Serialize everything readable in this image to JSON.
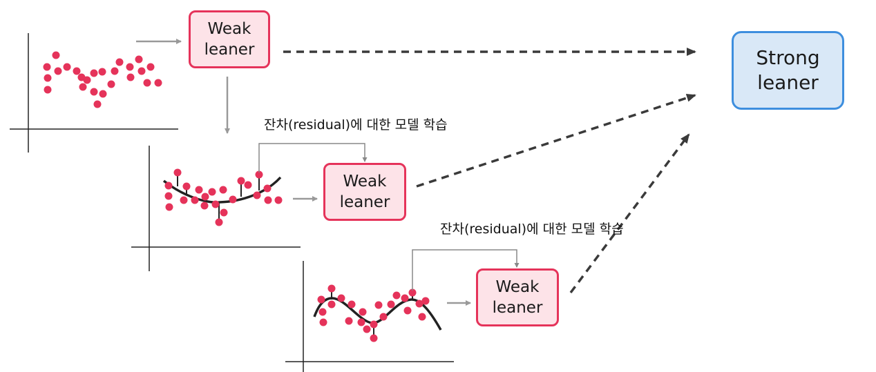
{
  "weak_learner": {
    "line1": "Weak",
    "line2": "leaner"
  },
  "strong_learner": {
    "line1": "Strong",
    "line2": "leaner"
  },
  "residual_label": "잔차(residual)에 대한 모델 학습",
  "colors": {
    "point": "#e5335a",
    "weak_border": "#e5335a",
    "weak_fill": "#fde3e8",
    "strong_border": "#3d8ede",
    "strong_fill": "#d9e8f7",
    "arrow_gray": "#999999",
    "dashed_arrow": "#3a3a3a"
  }
}
